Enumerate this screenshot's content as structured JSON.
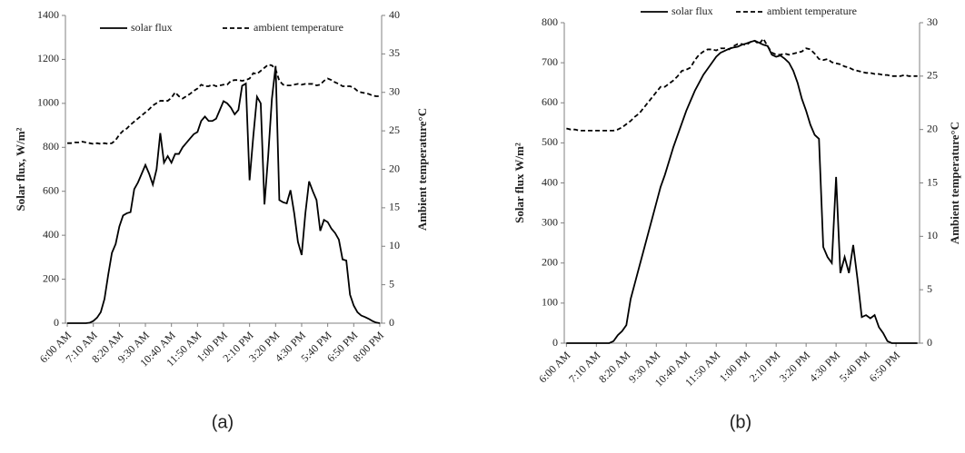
{
  "chart_data": [
    {
      "type": "line",
      "caption": "(a)",
      "y_label": "Solar flux, W/m²",
      "y2_label": "Ambient temperature°C",
      "legend": "top",
      "grid": false,
      "categories": [
        "6:00 AM",
        null,
        null,
        null,
        null,
        null,
        null,
        "7:10 AM",
        null,
        null,
        null,
        null,
        null,
        null,
        "8:20 AM",
        null,
        null,
        null,
        null,
        null,
        null,
        "9:30 AM",
        null,
        null,
        null,
        null,
        null,
        null,
        "10:40 AM",
        null,
        null,
        null,
        null,
        null,
        null,
        "11:50 AM",
        null,
        null,
        null,
        null,
        null,
        null,
        "1:00 PM",
        null,
        null,
        null,
        null,
        null,
        null,
        "2:10 PM",
        null,
        null,
        null,
        null,
        null,
        null,
        "3:20 PM",
        null,
        null,
        null,
        null,
        null,
        null,
        "4:30 PM",
        null,
        null,
        null,
        null,
        null,
        null,
        "5:40 PM",
        null,
        null,
        null,
        null,
        null,
        null,
        "6:50 PM",
        null,
        null,
        null,
        null,
        null,
        null,
        "8:00 PM"
      ],
      "ylim": [
        0,
        1400
      ],
      "yticks": [
        0,
        200,
        400,
        600,
        800,
        1000,
        1200,
        1400
      ],
      "y2lim": [
        0,
        40
      ],
      "y2ticks": [
        0,
        5,
        10,
        15,
        20,
        25,
        30,
        35,
        40
      ],
      "series": [
        {
          "name": "solar flux",
          "color": "#000000",
          "line_style": "solid",
          "values": [
            0,
            0,
            0,
            0,
            0,
            0,
            2,
            10,
            25,
            50,
            110,
            220,
            320,
            360,
            440,
            490,
            500,
            505,
            610,
            640,
            680,
            720,
            680,
            630,
            700,
            865,
            730,
            760,
            730,
            770,
            770,
            800,
            820,
            840,
            860,
            870,
            920,
            940,
            920,
            920,
            930,
            970,
            1010,
            1000,
            980,
            950,
            970,
            1080,
            1090,
            650,
            850,
            1030,
            1000,
            540,
            760,
            1020,
            1170,
            560,
            550,
            545,
            605,
            500,
            370,
            310,
            500,
            645,
            600,
            560,
            420,
            470,
            460,
            430,
            410,
            380,
            290,
            285,
            130,
            80,
            50,
            35,
            28,
            20,
            10,
            3,
            0
          ]
        },
        {
          "name": "ambient temperature",
          "color": "#000000",
          "line_style": "dashed",
          "axis": "y2",
          "values": [
            23.4,
            23.4,
            23.5,
            23.5,
            23.6,
            23.5,
            23.4,
            23.3,
            23.4,
            23.3,
            23.4,
            23.3,
            23.4,
            23.8,
            24.5,
            25,
            25.3,
            25.8,
            26.2,
            26.6,
            27,
            27.4,
            27.8,
            28.3,
            28.6,
            28.9,
            28.9,
            28.9,
            29.3,
            30,
            29.5,
            29.2,
            29.5,
            29.8,
            30.2,
            30.5,
            31,
            30.8,
            30.8,
            31,
            30.8,
            30.9,
            31,
            31,
            31.5,
            31.6,
            31.6,
            31.5,
            31.6,
            31.8,
            32.5,
            32.4,
            32.8,
            33.2,
            33.6,
            33.5,
            33,
            31.5,
            31,
            30.9,
            30.9,
            31,
            31.1,
            31,
            31.1,
            31.1,
            31.1,
            30.9,
            31,
            31.5,
            31.8,
            31.6,
            31.3,
            31.1,
            30.8,
            30.8,
            30.8,
            30.6,
            30.2,
            30,
            29.9,
            29.8,
            29.6,
            29.5,
            29.5
          ]
        }
      ]
    },
    {
      "type": "line",
      "caption": "(b)",
      "y_label": "Solar flux W/m²",
      "y2_label": "Ambient temperature°C",
      "legend": "top",
      "grid": false,
      "categories": [
        "6:00 AM",
        null,
        null,
        null,
        null,
        null,
        null,
        "7:10 AM",
        null,
        null,
        null,
        null,
        null,
        null,
        "8:20 AM",
        null,
        null,
        null,
        null,
        null,
        null,
        "9:30 AM",
        null,
        null,
        null,
        null,
        null,
        null,
        "10:40 AM",
        null,
        null,
        null,
        null,
        null,
        null,
        "11:50 AM",
        null,
        null,
        null,
        null,
        null,
        null,
        "1:00 PM",
        null,
        null,
        null,
        null,
        null,
        null,
        "2:10 PM",
        null,
        null,
        null,
        null,
        null,
        null,
        "3:20 PM",
        null,
        null,
        null,
        null,
        null,
        null,
        "4:30 PM",
        null,
        null,
        null,
        null,
        null,
        null,
        "5:40 PM",
        null,
        null,
        null,
        null,
        null,
        null,
        "6:50 PM",
        null,
        null,
        null,
        null,
        null
      ],
      "ylim": [
        0,
        800
      ],
      "yticks": [
        0,
        100,
        200,
        300,
        400,
        500,
        600,
        700,
        800
      ],
      "y2lim": [
        0,
        30
      ],
      "y2ticks": [
        0,
        5,
        10,
        15,
        20,
        25,
        30
      ],
      "series": [
        {
          "name": "solar flux",
          "color": "#000000",
          "line_style": "solid",
          "values": [
            0,
            0,
            0,
            0,
            0,
            0,
            0,
            0,
            0,
            0,
            0,
            5,
            20,
            30,
            45,
            110,
            150,
            190,
            230,
            270,
            310,
            350,
            390,
            420,
            455,
            490,
            520,
            550,
            580,
            605,
            630,
            650,
            670,
            685,
            700,
            715,
            725,
            730,
            735,
            738,
            740,
            745,
            748,
            752,
            755,
            750,
            745,
            742,
            720,
            715,
            718,
            710,
            700,
            680,
            650,
            610,
            580,
            545,
            520,
            510,
            240,
            215,
            200,
            415,
            175,
            215,
            175,
            245,
            160,
            65,
            70,
            62,
            70,
            40,
            25,
            5,
            0,
            0,
            0,
            0,
            0,
            0,
            0
          ]
        },
        {
          "name": "ambient temperature",
          "color": "#000000",
          "line_style": "dashed",
          "axis": "y2",
          "values": [
            20.1,
            20,
            20,
            19.9,
            19.9,
            19.9,
            19.9,
            19.9,
            19.9,
            19.9,
            19.9,
            19.9,
            20,
            20.2,
            20.5,
            20.8,
            21.2,
            21.5,
            22,
            22.5,
            23,
            23.5,
            24,
            24,
            24.3,
            24.6,
            25,
            25.5,
            25.6,
            25.8,
            26.5,
            27,
            27.3,
            27.5,
            27.5,
            27.4,
            27.6,
            27.6,
            27.5,
            27.8,
            28,
            28,
            27.9,
            28.2,
            28.3,
            28,
            28.5,
            27.8,
            27.2,
            27,
            27,
            27.1,
            27,
            27.1,
            27.2,
            27.3,
            27.6,
            27.5,
            27.1,
            26.6,
            26.5,
            26.6,
            26.3,
            26.2,
            26.1,
            25.9,
            25.8,
            25.6,
            25.5,
            25.4,
            25.3,
            25.3,
            25.2,
            25.2,
            25.1,
            25.1,
            25,
            25,
            25,
            25.1,
            25,
            25,
            25
          ]
        }
      ]
    }
  ]
}
